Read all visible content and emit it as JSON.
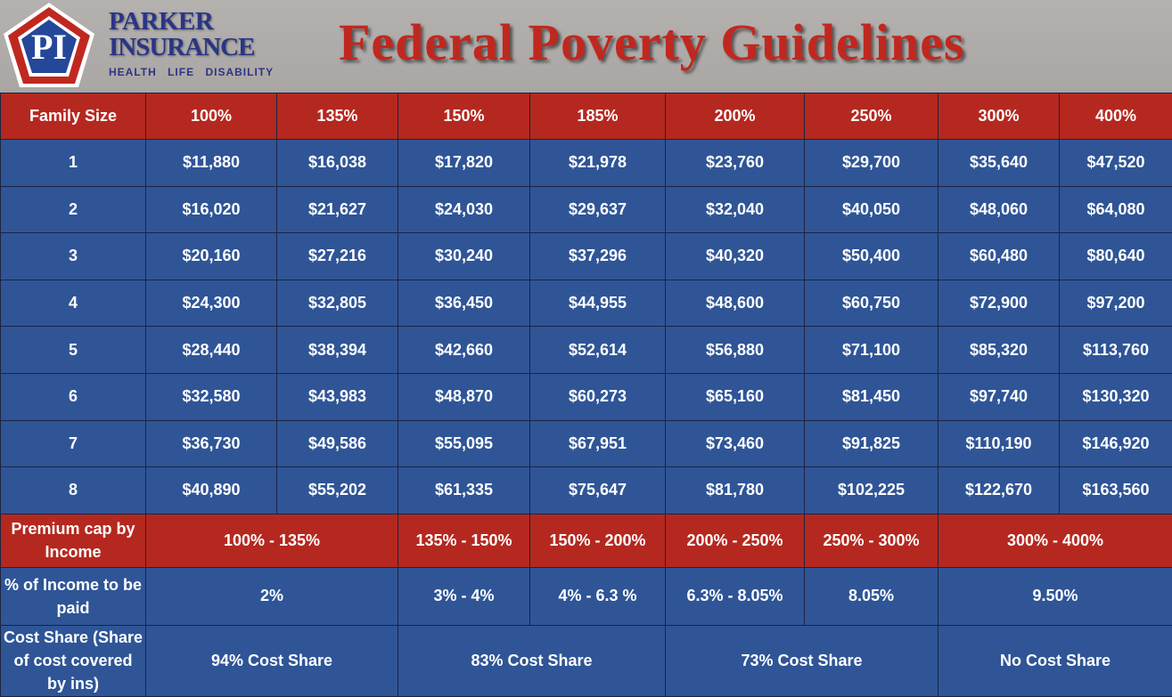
{
  "logo": {
    "initials": "PI",
    "line1": "PARKER",
    "line2": "INSURANCE",
    "tagline": "HEALTH LIFE DISABILITY"
  },
  "title": "Federal Poverty Guidelines",
  "colors": {
    "red": "#b5281f",
    "blue": "#2f5597"
  },
  "table": {
    "headers": [
      "Family Size",
      "100%",
      "135%",
      "150%",
      "185%",
      "200%",
      "250%",
      "300%",
      "400%"
    ],
    "rows": [
      [
        "1",
        "$11,880",
        "$16,038",
        "$17,820",
        "$21,978",
        "$23,760",
        "$29,700",
        "$35,640",
        "$47,520"
      ],
      [
        "2",
        "$16,020",
        "$21,627",
        "$24,030",
        "$29,637",
        "$32,040",
        "$40,050",
        "$48,060",
        "$64,080"
      ],
      [
        "3",
        "$20,160",
        "$27,216",
        "$30,240",
        "$37,296",
        "$40,320",
        "$50,400",
        "$60,480",
        "$80,640"
      ],
      [
        "4",
        "$24,300",
        "$32,805",
        "$36,450",
        "$44,955",
        "$48,600",
        "$60,750",
        "$72,900",
        "$97,200"
      ],
      [
        "5",
        "$28,440",
        "$38,394",
        "$42,660",
        "$52,614",
        "$56,880",
        "$71,100",
        "$85,320",
        "$113,760"
      ],
      [
        "6",
        "$32,580",
        "$43,983",
        "$48,870",
        "$60,273",
        "$65,160",
        "$81,450",
        "$97,740",
        "$130,320"
      ],
      [
        "7",
        "$36,730",
        "$49,586",
        "$55,095",
        "$67,951",
        "$73,460",
        "$91,825",
        "$110,190",
        "$146,920"
      ],
      [
        "8",
        "$40,890",
        "$55,202",
        "$61,335",
        "$75,647",
        "$81,780",
        "$102,225",
        "$122,670",
        "$163,560"
      ]
    ],
    "premium": {
      "label": "Premium cap by Income",
      "values": [
        "100% - 135%",
        "135% - 150%",
        "150% - 200%",
        "200% - 250%",
        "250% - 300%",
        "300% - 400%"
      ]
    },
    "income": {
      "label": "% of Income to be paid",
      "values": [
        "2%",
        "3% - 4%",
        "4% - 6.3 %",
        "6.3% - 8.05%",
        "8.05%",
        "9.50%"
      ]
    },
    "cost": {
      "label": "Cost Share (Share of cost covered by ins)",
      "values": [
        "94% Cost Share",
        "83% Cost Share",
        "73% Cost Share",
        "No Cost Share"
      ]
    }
  }
}
